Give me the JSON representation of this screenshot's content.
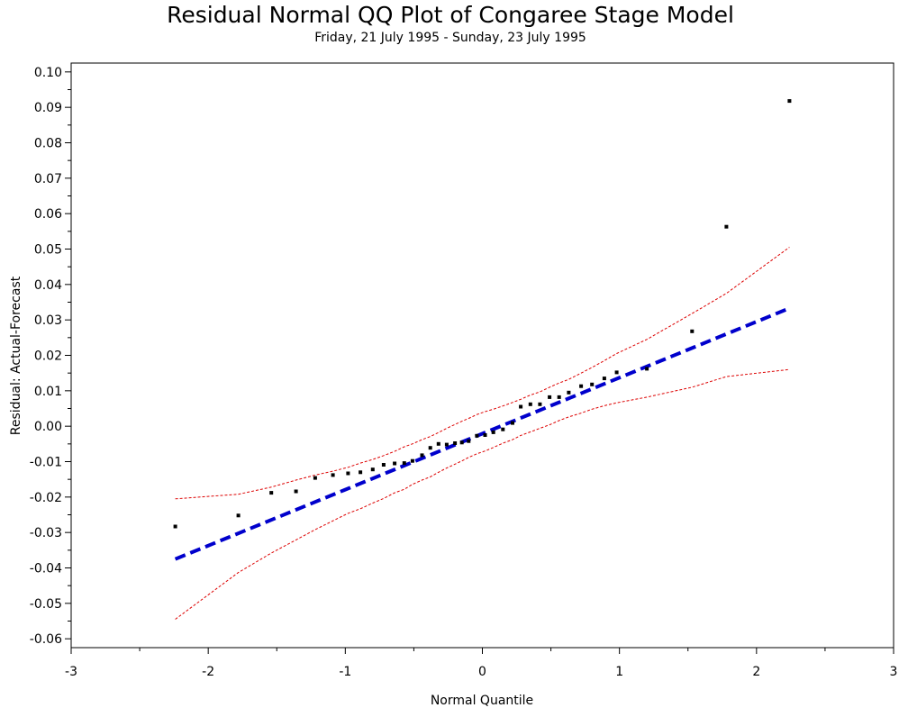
{
  "chart_data": {
    "type": "scatter",
    "title": "Residual Normal QQ Plot of Congaree Stage Model",
    "subtitle": "Friday, 21 July 1995 - Sunday, 23 July 1995",
    "xlabel": "Normal Quantile",
    "ylabel": "Residual: Actual-Forecast",
    "xlim": [
      -3,
      3
    ],
    "ylim": [
      -0.0625,
      0.1025
    ],
    "xticks": [
      "-3",
      "-2",
      "-1",
      "0",
      "1",
      "2",
      "3"
    ],
    "yticks": [
      "0.10",
      "0.09",
      "0.08",
      "0.07",
      "0.06",
      "0.05",
      "0.04",
      "0.03",
      "0.02",
      "0.01",
      "0.00",
      "-0.01",
      "-0.02",
      "-0.03",
      "-0.04",
      "-0.05",
      "-0.06"
    ],
    "grid": false,
    "legend": "none",
    "colors": {
      "points": "#000000",
      "reference_line": "#0000cc",
      "confidence_band": "#dd0000"
    },
    "series": [
      {
        "role": "residuals",
        "x": [
          -2.24,
          -1.78,
          -1.54,
          -1.36,
          -1.22,
          -1.09,
          -0.98,
          -0.89,
          -0.8,
          -0.72,
          -0.64,
          -0.57,
          -0.51,
          -0.44,
          -0.38,
          -0.32,
          -0.26,
          -0.2,
          -0.15,
          -0.1,
          -0.04,
          0.02,
          0.08,
          0.15,
          0.22,
          0.28,
          0.35,
          0.42,
          0.49,
          0.56,
          0.63,
          0.72,
          0.8,
          0.89,
          0.98,
          1.2,
          1.53,
          1.78,
          2.24
        ],
        "y": [
          -0.0283,
          -0.0252,
          -0.0188,
          -0.0184,
          -0.0146,
          -0.0138,
          -0.0133,
          -0.013,
          -0.0122,
          -0.0109,
          -0.0105,
          -0.0104,
          -0.0098,
          -0.0082,
          -0.0061,
          -0.005,
          -0.0052,
          -0.0048,
          -0.0046,
          -0.0042,
          -0.0027,
          -0.0025,
          -0.0017,
          -0.0009,
          0.0009,
          0.0055,
          0.0062,
          0.0062,
          0.0082,
          0.0082,
          0.0095,
          0.0113,
          0.0118,
          0.0135,
          0.0152,
          0.0162,
          0.0268,
          0.0563,
          0.0918
        ]
      },
      {
        "role": "reference-line",
        "x": [
          -2.24,
          2.24
        ],
        "y": [
          -0.0375,
          0.0333
        ]
      },
      {
        "role": "upper-confidence-band",
        "x": [
          -2.24,
          -1.78,
          -1.54,
          -1.36,
          -1.22,
          -1.09,
          -0.98,
          -0.89,
          -0.8,
          -0.72,
          -0.64,
          -0.57,
          -0.51,
          -0.44,
          -0.38,
          -0.32,
          -0.26,
          -0.2,
          -0.15,
          -0.1,
          -0.04,
          0.02,
          0.08,
          0.15,
          0.22,
          0.28,
          0.35,
          0.42,
          0.49,
          0.56,
          0.63,
          0.72,
          0.8,
          0.89,
          0.98,
          1.2,
          1.53,
          1.78,
          2.24
        ],
        "y": [
          -0.0205,
          -0.0192,
          -0.0172,
          -0.0152,
          -0.0138,
          -0.0127,
          -0.0116,
          -0.0104,
          -0.0094,
          -0.0083,
          -0.0071,
          -0.0058,
          -0.005,
          -0.0038,
          -0.0029,
          -0.0018,
          -0.0006,
          0.0005,
          0.0014,
          0.0022,
          0.0033,
          0.0041,
          0.0048,
          0.0057,
          0.0067,
          0.0076,
          0.0088,
          0.0097,
          0.011,
          0.0122,
          0.0132,
          0.015,
          0.0166,
          0.0185,
          0.0205,
          0.0245,
          0.0318,
          0.0375,
          0.0505
        ]
      },
      {
        "role": "lower-confidence-band",
        "x": [
          -2.24,
          -1.78,
          -1.54,
          -1.36,
          -1.22,
          -1.09,
          -0.98,
          -0.89,
          -0.8,
          -0.72,
          -0.64,
          -0.57,
          -0.51,
          -0.44,
          -0.38,
          -0.32,
          -0.26,
          -0.2,
          -0.15,
          -0.1,
          -0.04,
          0.02,
          0.08,
          0.15,
          0.22,
          0.28,
          0.35,
          0.42,
          0.49,
          0.56,
          0.63,
          0.72,
          0.8,
          0.89,
          0.98,
          1.2,
          1.53,
          1.78,
          2.24
        ],
        "y": [
          -0.0545,
          -0.0413,
          -0.0358,
          -0.0321,
          -0.0292,
          -0.0267,
          -0.0246,
          -0.0233,
          -0.0217,
          -0.0204,
          -0.0188,
          -0.0178,
          -0.0164,
          -0.0152,
          -0.0143,
          -0.013,
          -0.0118,
          -0.0107,
          -0.0098,
          -0.0088,
          -0.0078,
          -0.007,
          -0.006,
          -0.0048,
          -0.0038,
          -0.0026,
          -0.0016,
          -0.0006,
          0.0004,
          0.0016,
          0.0026,
          0.0037,
          0.0048,
          0.0058,
          0.0066,
          0.0082,
          0.011,
          0.014,
          0.016
        ]
      }
    ]
  }
}
